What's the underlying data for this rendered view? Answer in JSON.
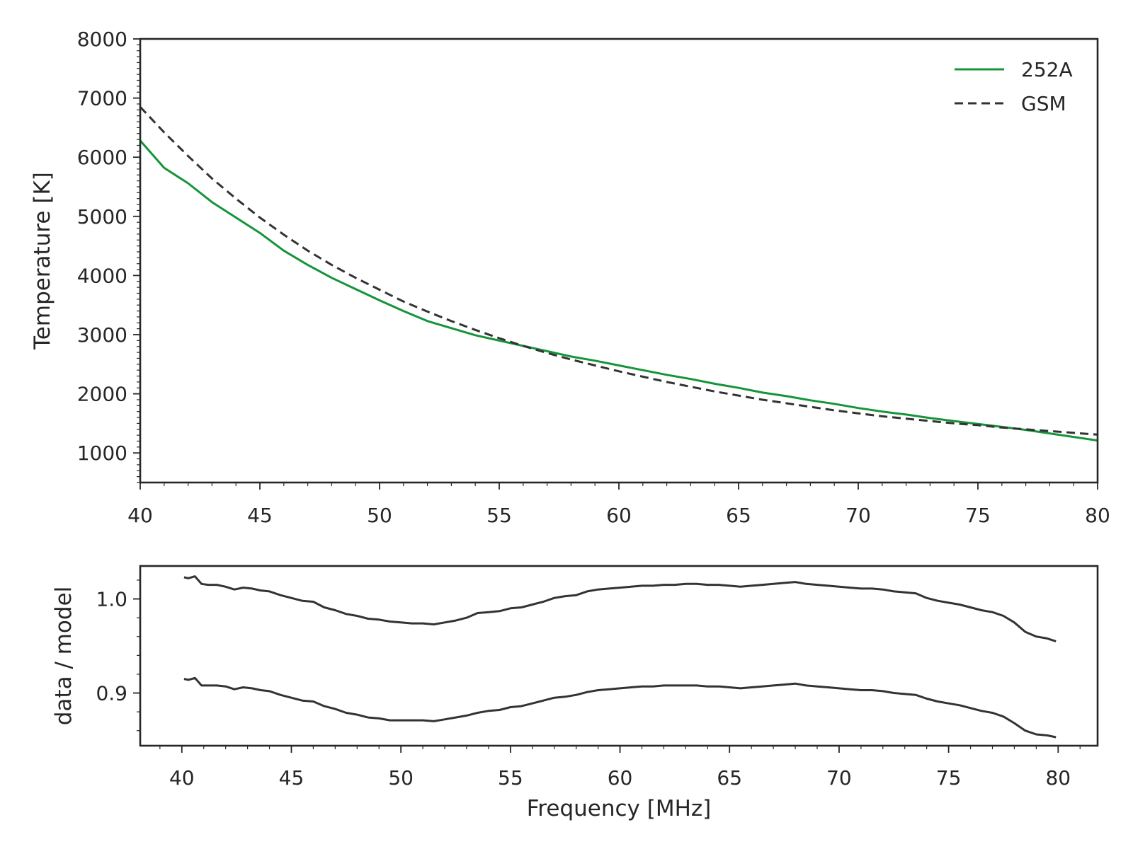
{
  "colors": {
    "data_252A": "#15943a",
    "gsm": "#333333",
    "ratio": "#333333",
    "axes": "#262626"
  },
  "chart_data": [
    {
      "type": "line",
      "xlabel": "",
      "ylabel": "Temperature [K]",
      "xlim": [
        40,
        80
      ],
      "ylim": [
        500,
        8000
      ],
      "xticks": [
        40,
        45,
        50,
        55,
        60,
        65,
        70,
        75,
        80
      ],
      "yticks": [
        1000,
        2000,
        3000,
        4000,
        5000,
        6000,
        7000,
        8000
      ],
      "xtick_labels": [
        "40",
        "45",
        "50",
        "55",
        "60",
        "65",
        "70",
        "75",
        "80"
      ],
      "ytick_labels": [
        "1000",
        "2000",
        "3000",
        "4000",
        "5000",
        "6000",
        "7000",
        "8000"
      ],
      "legend": {
        "position": "top-right",
        "entries": [
          "252A",
          "GSM"
        ]
      },
      "grid": false,
      "series": [
        {
          "name": "252A",
          "style": "solid",
          "x": [
            40,
            41,
            42,
            43,
            44,
            45,
            46,
            47,
            48,
            49,
            50,
            51,
            52,
            53,
            54,
            55,
            56,
            57,
            58,
            59,
            60,
            61,
            62,
            63,
            64,
            65,
            66,
            67,
            68,
            69,
            70,
            71,
            72,
            73,
            74,
            75,
            76,
            77,
            78,
            79,
            80
          ],
          "y": [
            6280,
            5820,
            5560,
            5240,
            4980,
            4720,
            4420,
            4180,
            3960,
            3770,
            3580,
            3400,
            3230,
            3110,
            2990,
            2900,
            2810,
            2720,
            2630,
            2560,
            2480,
            2400,
            2320,
            2250,
            2170,
            2100,
            2020,
            1960,
            1890,
            1830,
            1760,
            1700,
            1650,
            1590,
            1540,
            1490,
            1440,
            1390,
            1330,
            1270,
            1210
          ]
        },
        {
          "name": "GSM",
          "style": "dashed",
          "x": [
            40,
            41,
            42,
            43,
            44,
            45,
            46,
            47,
            48,
            49,
            50,
            51,
            52,
            53,
            54,
            55,
            56,
            57,
            58,
            59,
            60,
            61,
            62,
            63,
            64,
            65,
            66,
            67,
            68,
            69,
            70,
            71,
            72,
            73,
            74,
            75,
            76,
            77,
            78,
            79,
            80
          ],
          "y": [
            6850,
            6420,
            6020,
            5640,
            5300,
            4980,
            4690,
            4420,
            4180,
            3960,
            3760,
            3560,
            3390,
            3230,
            3080,
            2940,
            2810,
            2690,
            2580,
            2480,
            2380,
            2290,
            2200,
            2120,
            2040,
            1970,
            1900,
            1840,
            1780,
            1720,
            1670,
            1620,
            1580,
            1540,
            1500,
            1470,
            1430,
            1400,
            1370,
            1340,
            1310
          ]
        }
      ]
    },
    {
      "type": "line",
      "xlabel": "Frequency [MHz]",
      "ylabel": "data / model",
      "xlim": [
        38.1,
        81.8
      ],
      "ylim": [
        0.844,
        1.035
      ],
      "xticks": [
        40,
        45,
        50,
        55,
        60,
        65,
        70,
        75,
        80
      ],
      "yticks": [
        0.9,
        1.0
      ],
      "xtick_labels": [
        "40",
        "45",
        "50",
        "55",
        "60",
        "65",
        "70",
        "75",
        "80"
      ],
      "ytick_labels": [
        "0.9",
        "1.0"
      ],
      "grid": false,
      "series": [
        {
          "style": "solid",
          "x": [
            40.1,
            40.3,
            40.6,
            40.9,
            41.2,
            41.6,
            42.0,
            42.4,
            42.8,
            43.2,
            43.6,
            44.0,
            44.5,
            45.0,
            45.5,
            46.0,
            46.5,
            47.0,
            47.5,
            48.0,
            48.5,
            49.0,
            49.5,
            50.0,
            50.5,
            51.0,
            51.5,
            52.0,
            52.5,
            53.0,
            53.5,
            54.0,
            54.5,
            55.0,
            55.5,
            56.0,
            56.5,
            57.0,
            57.5,
            58.0,
            58.5,
            59.0,
            59.5,
            60.0,
            60.5,
            61.0,
            61.5,
            62.0,
            62.5,
            63.0,
            63.5,
            64.0,
            64.5,
            65.0,
            65.5,
            66.0,
            66.5,
            67.0,
            67.5,
            68.0,
            68.5,
            69.0,
            69.5,
            70.0,
            70.5,
            71.0,
            71.5,
            72.0,
            72.5,
            73.0,
            73.5,
            74.0,
            74.5,
            75.0,
            75.5,
            76.0,
            76.5,
            77.0,
            77.5,
            78.0,
            78.5,
            79.0,
            79.5,
            79.9
          ],
          "y": [
            1.023,
            1.022,
            1.024,
            1.016,
            1.015,
            1.015,
            1.013,
            1.01,
            1.012,
            1.011,
            1.009,
            1.008,
            1.004,
            1.001,
            0.998,
            0.997,
            0.991,
            0.988,
            0.984,
            0.982,
            0.979,
            0.978,
            0.976,
            0.975,
            0.974,
            0.974,
            0.973,
            0.975,
            0.977,
            0.98,
            0.985,
            0.986,
            0.987,
            0.99,
            0.991,
            0.994,
            0.997,
            1.001,
            1.003,
            1.004,
            1.008,
            1.01,
            1.011,
            1.012,
            1.013,
            1.014,
            1.014,
            1.015,
            1.015,
            1.016,
            1.016,
            1.015,
            1.015,
            1.014,
            1.013,
            1.014,
            1.015,
            1.016,
            1.017,
            1.018,
            1.016,
            1.015,
            1.014,
            1.013,
            1.012,
            1.011,
            1.011,
            1.01,
            1.008,
            1.007,
            1.006,
            1.001,
            0.998,
            0.996,
            0.994,
            0.991,
            0.988,
            0.986,
            0.982,
            0.975,
            0.965,
            0.96,
            0.958,
            0.955
          ]
        },
        {
          "style": "solid",
          "x": [
            40.1,
            40.3,
            40.6,
            40.9,
            41.2,
            41.6,
            42.0,
            42.4,
            42.8,
            43.2,
            43.6,
            44.0,
            44.5,
            45.0,
            45.5,
            46.0,
            46.5,
            47.0,
            47.5,
            48.0,
            48.5,
            49.0,
            49.5,
            50.0,
            50.5,
            51.0,
            51.5,
            52.0,
            52.5,
            53.0,
            53.5,
            54.0,
            54.5,
            55.0,
            55.5,
            56.0,
            56.5,
            57.0,
            57.5,
            58.0,
            58.5,
            59.0,
            59.5,
            60.0,
            60.5,
            61.0,
            61.5,
            62.0,
            62.5,
            63.0,
            63.5,
            64.0,
            64.5,
            65.0,
            65.5,
            66.0,
            66.5,
            67.0,
            67.5,
            68.0,
            68.5,
            69.0,
            69.5,
            70.0,
            70.5,
            71.0,
            71.5,
            72.0,
            72.5,
            73.0,
            73.5,
            74.0,
            74.5,
            75.0,
            75.5,
            76.0,
            76.5,
            77.0,
            77.5,
            78.0,
            78.5,
            79.0,
            79.5,
            79.9
          ],
          "y": [
            0.915,
            0.914,
            0.916,
            0.908,
            0.908,
            0.908,
            0.907,
            0.904,
            0.906,
            0.905,
            0.903,
            0.902,
            0.898,
            0.895,
            0.892,
            0.891,
            0.886,
            0.883,
            0.879,
            0.877,
            0.874,
            0.873,
            0.871,
            0.871,
            0.871,
            0.871,
            0.87,
            0.872,
            0.874,
            0.876,
            0.879,
            0.881,
            0.882,
            0.885,
            0.886,
            0.889,
            0.892,
            0.895,
            0.896,
            0.898,
            0.901,
            0.903,
            0.904,
            0.905,
            0.906,
            0.907,
            0.907,
            0.908,
            0.908,
            0.908,
            0.908,
            0.907,
            0.907,
            0.906,
            0.905,
            0.906,
            0.907,
            0.908,
            0.909,
            0.91,
            0.908,
            0.907,
            0.906,
            0.905,
            0.904,
            0.903,
            0.903,
            0.902,
            0.9,
            0.899,
            0.898,
            0.894,
            0.891,
            0.889,
            0.887,
            0.884,
            0.881,
            0.879,
            0.875,
            0.868,
            0.86,
            0.856,
            0.855,
            0.853
          ]
        }
      ]
    }
  ]
}
